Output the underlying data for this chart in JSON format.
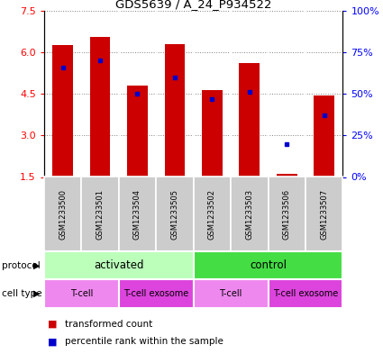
{
  "title": "GDS5639 / A_24_P934522",
  "samples": [
    "GSM1233500",
    "GSM1233501",
    "GSM1233504",
    "GSM1233505",
    "GSM1233502",
    "GSM1233503",
    "GSM1233506",
    "GSM1233507"
  ],
  "transformed_count": [
    6.25,
    6.55,
    4.8,
    6.3,
    4.65,
    5.6,
    1.6,
    4.45
  ],
  "percentile_rank": [
    66,
    70,
    50,
    60,
    47,
    51,
    20,
    37
  ],
  "ylim": [
    1.5,
    7.5
  ],
  "yticks": [
    1.5,
    3.0,
    4.5,
    6.0,
    7.5
  ],
  "bar_color": "#cc0000",
  "dot_color": "#0000cc",
  "bar_bottom": 1.5,
  "bar_width": 0.55,
  "protocol_groups": [
    {
      "label": "activated",
      "start": 0,
      "end": 4,
      "color": "#bbffbb"
    },
    {
      "label": "control",
      "start": 4,
      "end": 8,
      "color": "#44dd44"
    }
  ],
  "cell_type_groups": [
    {
      "label": "T-cell",
      "start": 0,
      "end": 2,
      "color": "#ee88ee"
    },
    {
      "label": "T-cell exosome",
      "start": 2,
      "end": 4,
      "color": "#dd44dd"
    },
    {
      "label": "T-cell",
      "start": 4,
      "end": 6,
      "color": "#ee88ee"
    },
    {
      "label": "T-cell exosome",
      "start": 6,
      "end": 8,
      "color": "#dd44dd"
    }
  ],
  "sample_col_color": "#cccccc",
  "right_yticks": [
    0,
    25,
    50,
    75,
    100
  ],
  "legend_red": "transformed count",
  "legend_blue": "percentile rank within the sample"
}
